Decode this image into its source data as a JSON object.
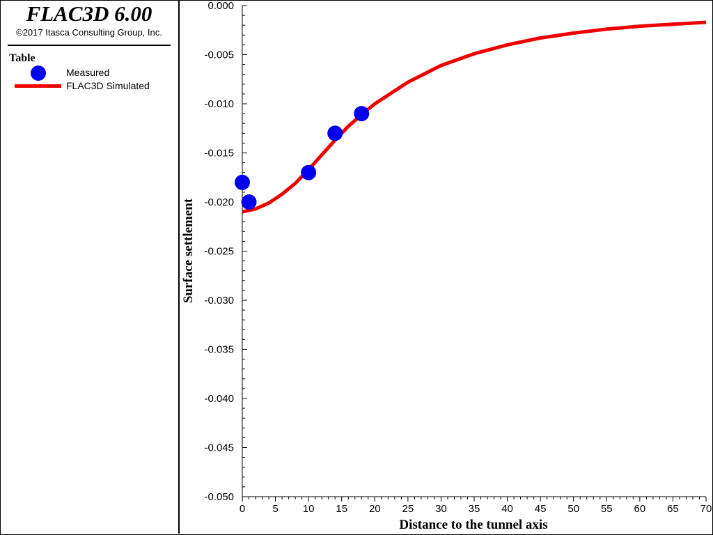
{
  "app": {
    "title": "FLAC3D 6.00",
    "copyright": "©2017 Itasca Consulting Group, Inc."
  },
  "legend": {
    "title": "Table",
    "items": [
      {
        "label": "Measured",
        "kind": "marker",
        "color": "#0000ee"
      },
      {
        "label": "FLAC3D Simulated",
        "kind": "line",
        "color": "#ee0000"
      }
    ]
  },
  "chart_data": {
    "type": "scatter",
    "xlabel": "Distance to the tunnel axis",
    "ylabel": "Surface settlement",
    "xlim": [
      0,
      70
    ],
    "ylim": [
      -0.05,
      0.0
    ],
    "x_ticks": [
      "0",
      "5",
      "10",
      "15",
      "20",
      "25",
      "30",
      "35",
      "40",
      "45",
      "50",
      "55",
      "60",
      "65",
      "70"
    ],
    "y_ticks": [
      "0.000",
      "-0.005",
      "-0.010",
      "-0.015",
      "-0.020",
      "-0.025",
      "-0.030",
      "-0.035",
      "-0.040",
      "-0.045",
      "-0.050"
    ],
    "grid": false,
    "legend_position": "left panel",
    "series": [
      {
        "name": "Measured",
        "kind": "marker",
        "color": "#0000ee",
        "points": [
          [
            0,
            -0.018
          ],
          [
            1,
            -0.02
          ],
          [
            10,
            -0.017
          ],
          [
            14,
            -0.013
          ],
          [
            18,
            -0.011
          ]
        ]
      },
      {
        "name": "FLAC3D Simulated",
        "kind": "line",
        "color": "#ee0000",
        "points": [
          [
            0,
            -0.021
          ],
          [
            2,
            -0.0207
          ],
          [
            4,
            -0.0201
          ],
          [
            6,
            -0.0192
          ],
          [
            8,
            -0.0181
          ],
          [
            10,
            -0.0167
          ],
          [
            12,
            -0.0152
          ],
          [
            14,
            -0.0137
          ],
          [
            16,
            -0.0123
          ],
          [
            18,
            -0.0111
          ],
          [
            20,
            -0.01
          ],
          [
            25,
            -0.0078
          ],
          [
            30,
            -0.0061
          ],
          [
            35,
            -0.0049
          ],
          [
            40,
            -0.004
          ],
          [
            45,
            -0.0033
          ],
          [
            50,
            -0.0028
          ],
          [
            55,
            -0.0024
          ],
          [
            60,
            -0.0021
          ],
          [
            65,
            -0.0019
          ],
          [
            70,
            -0.0017
          ]
        ]
      }
    ]
  }
}
